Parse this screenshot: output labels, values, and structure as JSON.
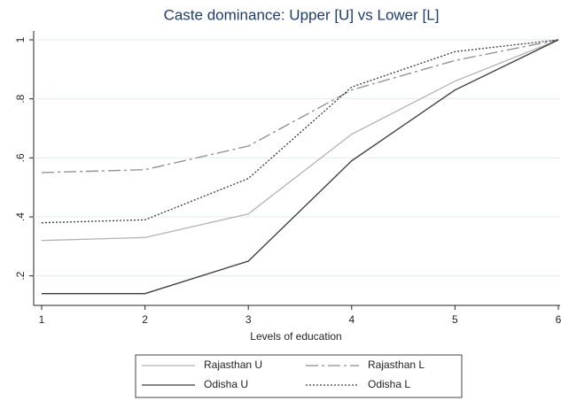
{
  "chart_data": {
    "type": "line",
    "title": "Caste dominance: Upper [U] vs Lower [L]",
    "x_label": "Levels of education",
    "x": [
      1,
      2,
      3,
      4,
      5,
      6
    ],
    "xlim": [
      1,
      6
    ],
    "xticks": [
      1,
      2,
      3,
      4,
      5,
      6
    ],
    "ylim": [
      0.1,
      1.03
    ],
    "yticks": [
      {
        "value": 0.2,
        "label": ".2"
      },
      {
        "value": 0.4,
        "label": ".4"
      },
      {
        "value": 0.6,
        "label": ".6"
      },
      {
        "value": 0.8,
        "label": ".8"
      },
      1
    ],
    "grid": true,
    "legend": "bottom",
    "series": [
      {
        "name": "Rajasthan U",
        "color": "#b3b3b3",
        "dash": "none",
        "values": [
          0.32,
          0.33,
          0.41,
          0.68,
          0.86,
          1
        ]
      },
      {
        "name": "Rajasthan L",
        "color": "#8c8c8c",
        "dash": "14 4 3 4",
        "values": [
          0.55,
          0.56,
          0.64,
          0.83,
          0.93,
          1
        ]
      },
      {
        "name": "Odisha U",
        "color": "#3a3a3a",
        "dash": "none",
        "values": [
          0.14,
          0.14,
          0.25,
          0.59,
          0.83,
          1
        ]
      },
      {
        "name": "Odisha L",
        "color": "#3a3a3a",
        "dash": "2 2",
        "values": [
          0.38,
          0.39,
          0.53,
          0.84,
          0.96,
          1
        ]
      }
    ]
  }
}
